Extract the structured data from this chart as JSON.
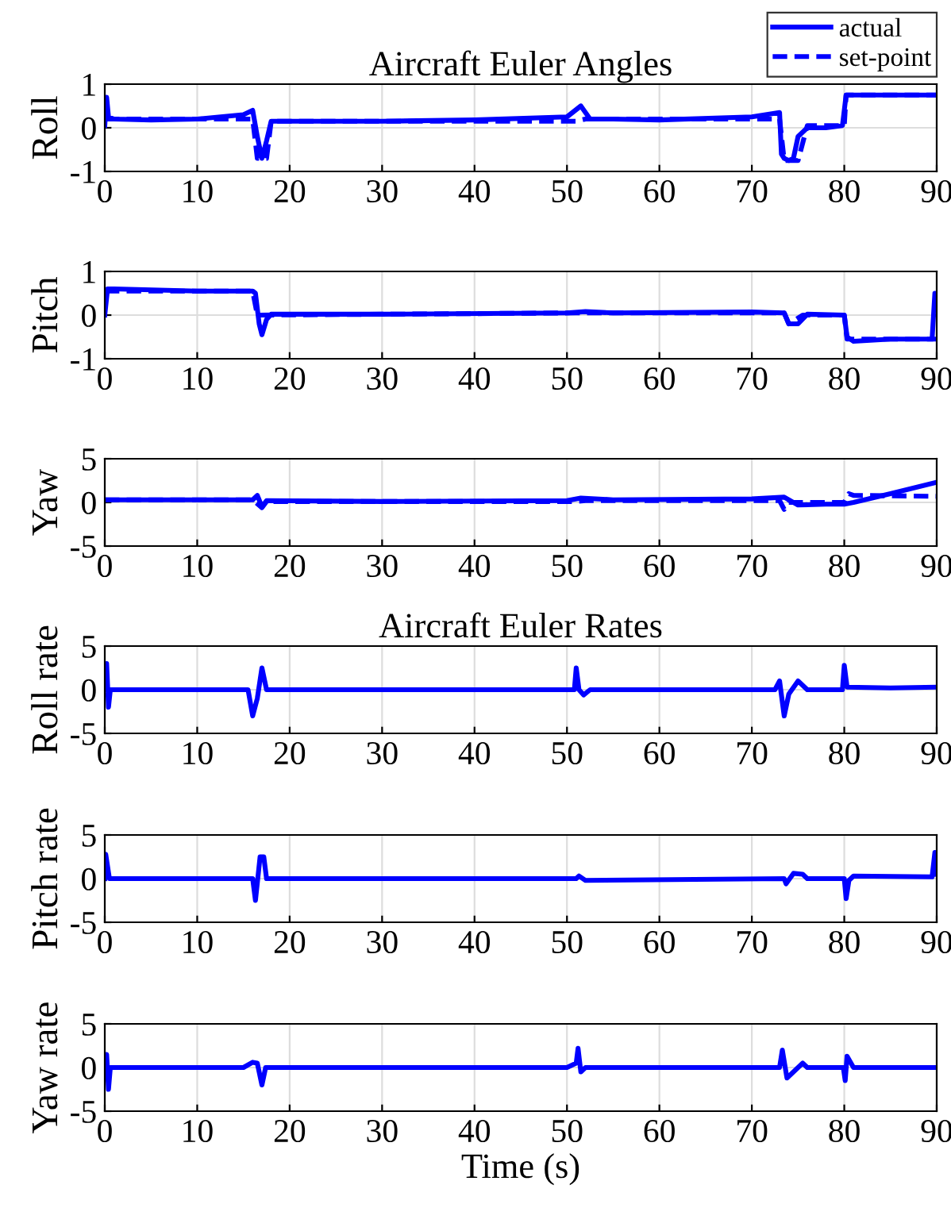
{
  "chart_data": [
    {
      "type": "line",
      "title": "Aircraft Euler Angles",
      "ylabel": "Roll",
      "xlim": [
        0,
        90
      ],
      "xticks": [
        0,
        10,
        20,
        30,
        40,
        50,
        60,
        70,
        80,
        90
      ],
      "ylim": [
        -1,
        1
      ],
      "yticks": [
        -1,
        0,
        1
      ],
      "grid": true,
      "legend": "top right",
      "series": [
        {
          "name": "actual",
          "color": "#0000ff",
          "line_style": "solid",
          "x": [
            0,
            0.2,
            0.4,
            1,
            5,
            10,
            15,
            16,
            16.5,
            17,
            17.5,
            18,
            20,
            30,
            40,
            50,
            51.5,
            52.5,
            55,
            60,
            70,
            73,
            73.2,
            73.5,
            74,
            74.5,
            75,
            76,
            78,
            79.8,
            80.2,
            85,
            90
          ],
          "values": [
            0.05,
            0.7,
            0.25,
            0.2,
            0.18,
            0.2,
            0.3,
            0.4,
            -0.2,
            -0.7,
            -0.3,
            0.15,
            0.15,
            0.15,
            0.18,
            0.25,
            0.5,
            0.2,
            0.2,
            0.18,
            0.25,
            0.35,
            -0.6,
            -0.7,
            -0.75,
            -0.7,
            -0.2,
            0.0,
            0.0,
            0.05,
            0.75,
            0.75,
            0.75
          ]
        },
        {
          "name": "set-point",
          "color": "#0000ff",
          "line_style": "dashed",
          "x": [
            0,
            16,
            16.5,
            17.5,
            18,
            51,
            52,
            73,
            73.5,
            75,
            76,
            80,
            80.2,
            90
          ],
          "values": [
            0.2,
            0.2,
            -0.7,
            -0.7,
            0.15,
            0.15,
            0.2,
            0.2,
            -0.75,
            -0.75,
            0.05,
            0.05,
            0.75,
            0.75
          ]
        }
      ]
    },
    {
      "type": "line",
      "ylabel": "Pitch",
      "xlim": [
        0,
        90
      ],
      "xticks": [
        0,
        10,
        20,
        30,
        40,
        50,
        60,
        70,
        80,
        90
      ],
      "ylim": [
        -1,
        1
      ],
      "yticks": [
        -1,
        0,
        1
      ],
      "grid": true,
      "series": [
        {
          "color": "#0000ff",
          "line_style": "solid",
          "x": [
            0,
            0.3,
            1,
            10,
            16,
            16.3,
            16.7,
            17,
            17.5,
            18,
            30,
            50,
            52,
            55,
            70,
            73.5,
            74,
            75,
            76,
            80,
            80.3,
            81,
            85,
            89.5,
            89.8,
            90
          ],
          "values": [
            0,
            0.6,
            0.6,
            0.55,
            0.55,
            0.5,
            -0.2,
            -0.45,
            -0.1,
            0.02,
            0.02,
            0.05,
            0.08,
            0.05,
            0.07,
            0.05,
            -0.2,
            -0.2,
            0.02,
            0.0,
            -0.5,
            -0.6,
            -0.55,
            -0.55,
            0.5,
            0.1
          ]
        },
        {
          "color": "#0000ff",
          "line_style": "dashed",
          "x": [
            0,
            16,
            16.5,
            51,
            52,
            73.5,
            74,
            75.5,
            80,
            80.3,
            90
          ],
          "values": [
            0.55,
            0.55,
            0.0,
            0.05,
            0.05,
            0.05,
            -0.2,
            0.0,
            0.0,
            -0.55,
            -0.55
          ]
        }
      ]
    },
    {
      "type": "line",
      "ylabel": "Yaw",
      "xlim": [
        0,
        90
      ],
      "xticks": [
        0,
        10,
        20,
        30,
        40,
        50,
        60,
        70,
        80,
        90
      ],
      "ylim": [
        -5,
        5
      ],
      "yticks": [
        -5,
        0,
        5
      ],
      "grid": true,
      "series": [
        {
          "color": "#0000ff",
          "line_style": "solid",
          "x": [
            0,
            16,
            16.5,
            17,
            17.5,
            30,
            50,
            51.5,
            55,
            70,
            73.5,
            75,
            78,
            80,
            81,
            85,
            90
          ],
          "values": [
            0.3,
            0.3,
            0.8,
            -0.5,
            0.2,
            0.1,
            0.2,
            0.5,
            0.3,
            0.4,
            0.6,
            -0.3,
            -0.2,
            -0.2,
            0,
            1,
            2.3
          ]
        },
        {
          "color": "#0000ff",
          "line_style": "dashed",
          "x": [
            0,
            16,
            17,
            17.5,
            51,
            52,
            73,
            73.5,
            74,
            80,
            80.5,
            81,
            90
          ],
          "values": [
            0.3,
            0.3,
            -0.6,
            0.1,
            0.1,
            0.2,
            0.2,
            -0.8,
            0,
            0,
            1,
            0.8,
            0.7
          ]
        }
      ]
    },
    {
      "type": "line",
      "title": "Aircraft Euler Rates",
      "ylabel": "Roll rate",
      "xlim": [
        0,
        90
      ],
      "xticks": [
        0,
        10,
        20,
        30,
        40,
        50,
        60,
        70,
        80,
        90
      ],
      "ylim": [
        -5,
        5
      ],
      "yticks": [
        -5,
        0,
        5
      ],
      "grid": true,
      "series": [
        {
          "color": "#0000ff",
          "line_style": "solid",
          "x": [
            0,
            0.2,
            0.4,
            0.6,
            15.5,
            16,
            16.5,
            17,
            17.5,
            50.8,
            51,
            51.3,
            51.8,
            52.5,
            72.5,
            73,
            73.5,
            74,
            75,
            76,
            79.8,
            80,
            80.3,
            85,
            90
          ],
          "values": [
            0,
            3,
            -2,
            0,
            0,
            -3,
            -1,
            2.5,
            0,
            0,
            2.5,
            0,
            -0.6,
            0,
            0,
            1,
            -3,
            -0.5,
            1,
            0,
            0,
            2.8,
            0.3,
            0.2,
            0.3
          ]
        }
      ]
    },
    {
      "type": "line",
      "ylabel": "Pitch rate",
      "xlim": [
        0,
        90
      ],
      "xticks": [
        0,
        10,
        20,
        30,
        40,
        50,
        60,
        70,
        80,
        90
      ],
      "ylim": [
        -5,
        5
      ],
      "yticks": [
        -5,
        0,
        5
      ],
      "grid": true,
      "series": [
        {
          "color": "#0000ff",
          "line_style": "solid",
          "x": [
            0,
            0.1,
            0.5,
            16,
            16.3,
            16.8,
            17.2,
            17.5,
            51,
            51.3,
            52,
            73.5,
            73.7,
            74.5,
            75.5,
            76,
            80,
            80.2,
            80.5,
            81,
            89.5,
            89.8,
            90
          ],
          "values": [
            0,
            2.8,
            0,
            0,
            -2.5,
            2.5,
            2.5,
            0,
            0,
            0.3,
            -0.2,
            0,
            -0.6,
            0.6,
            0.5,
            0,
            0,
            -2.3,
            -0.2,
            0.3,
            0.2,
            3,
            0.5
          ]
        }
      ]
    },
    {
      "type": "line",
      "ylabel": "Yaw rate",
      "xlabel": "Time (s)",
      "xlim": [
        0,
        90
      ],
      "xticks": [
        0,
        10,
        20,
        30,
        40,
        50,
        60,
        70,
        80,
        90
      ],
      "ylim": [
        -5,
        5
      ],
      "yticks": [
        -5,
        0,
        5
      ],
      "grid": true,
      "series": [
        {
          "color": "#0000ff",
          "line_style": "solid",
          "x": [
            0,
            0.2,
            0.4,
            0.6,
            15,
            16,
            16.5,
            17,
            17.4,
            50,
            51,
            51.2,
            51.5,
            52,
            73,
            73.3,
            73.8,
            75.5,
            76,
            79.9,
            80.1,
            80.3,
            81,
            90
          ],
          "values": [
            0,
            1.5,
            -2.5,
            0,
            0,
            0.6,
            0.5,
            -2,
            0,
            0,
            0.5,
            2.2,
            -0.5,
            0,
            0,
            2,
            -1.2,
            0.5,
            0,
            0,
            -1.5,
            1.3,
            0,
            0
          ]
        }
      ]
    }
  ]
}
